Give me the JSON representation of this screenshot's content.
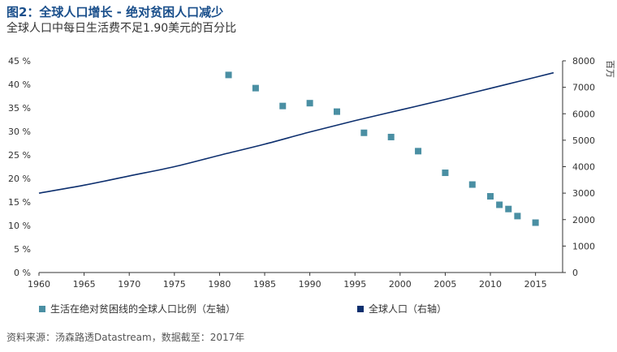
{
  "header": {
    "title": "图2：全球人口增长 - 绝对贫困人口减少",
    "subtitle": "全球人口中每日生活费不足1.90美元的百分比"
  },
  "source": "资料来源：汤森路透Datastream，数据截至：2017年",
  "colors": {
    "title": "#1a4f8b",
    "poverty_marker": "#4a8fa3",
    "population_line": "#0d2f6e",
    "axis": "#333333"
  },
  "chart_data": {
    "type": "scatter+line",
    "x_range": [
      1960,
      2018
    ],
    "x_ticks": [
      1960,
      1965,
      1970,
      1975,
      1980,
      1985,
      1990,
      1995,
      2000,
      2005,
      2010,
      2015
    ],
    "left_axis": {
      "range": [
        0,
        45
      ],
      "ticks": [
        0,
        5,
        10,
        15,
        20,
        25,
        30,
        35,
        40,
        45
      ],
      "tick_labels": [
        "0 %",
        "5 %",
        "10 %",
        "15 %",
        "20 %",
        "25 %",
        "30 %",
        "35 %",
        "40 %",
        "45 %"
      ]
    },
    "right_axis": {
      "range": [
        0,
        8000
      ],
      "ticks": [
        0,
        1000,
        2000,
        3000,
        4000,
        5000,
        6000,
        7000,
        8000
      ],
      "tick_labels": [
        "0",
        "1000",
        "2000",
        "3000",
        "4000",
        "5000",
        "6000",
        "7000",
        "8000"
      ],
      "unit_label": "百万"
    },
    "series": [
      {
        "name": "生活在绝对贫困线的全球人口比例（左轴）",
        "kind": "scatter",
        "axis": "left",
        "x": [
          1981,
          1984,
          1987,
          1990,
          1993,
          1996,
          1999,
          2002,
          2005,
          2008,
          2010,
          2011,
          2012,
          2013,
          2015
        ],
        "y": [
          42.0,
          39.2,
          35.4,
          36.0,
          34.2,
          29.7,
          28.8,
          25.8,
          21.2,
          18.7,
          16.2,
          14.4,
          13.5,
          12.0,
          10.6
        ]
      },
      {
        "name": "全球人口（右轴）",
        "kind": "line",
        "axis": "right",
        "x": [
          1960,
          1965,
          1970,
          1975,
          1980,
          1985,
          1990,
          1995,
          2000,
          2005,
          2010,
          2015,
          2017
        ],
        "y": [
          3000,
          3300,
          3650,
          4000,
          4430,
          4850,
          5310,
          5740,
          6140,
          6540,
          6960,
          7380,
          7550
        ]
      }
    ],
    "legend_placement": "bottom"
  }
}
